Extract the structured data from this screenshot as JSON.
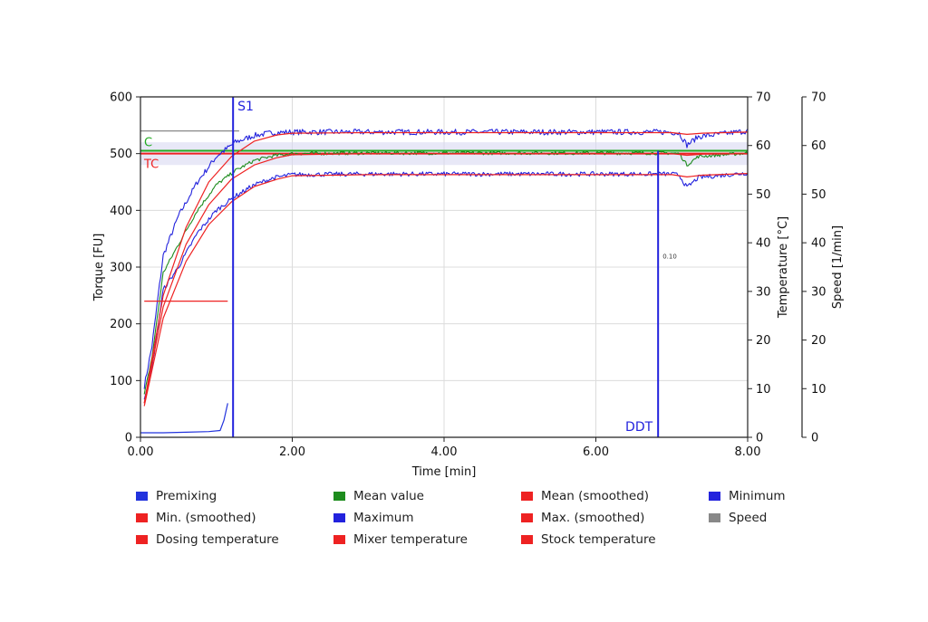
{
  "chart_data": {
    "type": "line",
    "xlabel": "Time [min]",
    "ylabel_left": "Torque [FU]",
    "ylabel_right1": "Temperature [°C]",
    "ylabel_right2": "Speed [1/min]",
    "xlim": [
      0,
      8
    ],
    "ylim_torque": [
      0,
      600
    ],
    "ylim_temp": [
      0,
      70
    ],
    "ylim_speed": [
      0,
      70
    ],
    "x_ticks": [
      "0.00",
      "2.00",
      "4.00",
      "6.00",
      "8.00"
    ],
    "torque_ticks": [
      "0",
      "100",
      "200",
      "300",
      "400",
      "500",
      "600"
    ],
    "temp_ticks": [
      "0",
      "10",
      "20",
      "30",
      "40",
      "50",
      "60",
      "70"
    ],
    "speed_ticks": [
      "0",
      "10",
      "20",
      "30",
      "40",
      "50",
      "60",
      "70"
    ],
    "grid": true,
    "markers": [
      {
        "label": "S1",
        "x": 1.22,
        "color": "#2222dd"
      },
      {
        "label": "DDT",
        "x": 6.82,
        "color": "#2222dd"
      }
    ],
    "annotation": {
      "text": "0.10",
      "x": 6.88,
      "y": 315
    },
    "reference_lines": [
      {
        "label": "C",
        "y": 505,
        "color": "#22aa22"
      },
      {
        "label": "TC",
        "y": 500,
        "color": "#ee2222"
      }
    ],
    "tolerance_band": {
      "y_min": 480,
      "y_max": 520,
      "x_min": 0,
      "x_max": 8
    },
    "colors": {
      "premixing": "#2233dd",
      "min_smoothed": "#ee2222",
      "dosing": "#ee2222",
      "mean_value": "#1e8c1e",
      "maximum": "#2222dd",
      "mixer": "#ee2222",
      "mean_smoothed": "#ee2222",
      "max_smoothed": "#ee2222",
      "stock": "#ee2222",
      "minimum": "#2222dd",
      "speed": "#888888"
    },
    "series": [
      {
        "key": "premixing",
        "name": "Premixing",
        "axis": "torque",
        "x": [
          0,
          0.05,
          0.3,
          0.6,
          0.9,
          1.05,
          1.1,
          1.15
        ],
        "values": [
          8,
          8,
          8,
          9,
          10,
          12,
          30,
          60
        ]
      },
      {
        "key": "maximum",
        "name": "Maximum",
        "axis": "torque",
        "x": [
          0.05,
          0.15,
          0.3,
          0.5,
          0.75,
          1.0,
          1.25,
          1.5,
          1.75,
          2.0,
          3.0,
          4.0,
          5.0,
          6.0,
          7.0,
          7.1,
          7.2,
          7.35,
          8.0
        ],
        "values": [
          90,
          160,
          320,
          390,
          450,
          495,
          520,
          532,
          537,
          538,
          538,
          538,
          538,
          538,
          538,
          536,
          515,
          530,
          540
        ]
      },
      {
        "key": "mean_value",
        "name": "Mean value",
        "axis": "torque",
        "x": [
          0.05,
          0.15,
          0.3,
          0.5,
          0.75,
          1.0,
          1.25,
          1.5,
          1.75,
          2.0,
          3.0,
          4.0,
          5.0,
          6.0,
          7.0,
          7.1,
          7.2,
          7.35,
          8.0
        ],
        "values": [
          75,
          140,
          290,
          340,
          400,
          445,
          470,
          488,
          496,
          500,
          501,
          501,
          501,
          501,
          501,
          500,
          480,
          495,
          501
        ]
      },
      {
        "key": "minimum",
        "name": "Minimum",
        "axis": "torque",
        "x": [
          0.05,
          0.15,
          0.3,
          0.5,
          0.75,
          1.0,
          1.25,
          1.5,
          1.75,
          2.0,
          3.0,
          4.0,
          5.0,
          6.0,
          7.0,
          7.1,
          7.2,
          7.35,
          8.0
        ],
        "values": [
          70,
          120,
          260,
          300,
          360,
          400,
          425,
          445,
          457,
          463,
          464,
          464,
          464,
          464,
          464,
          462,
          440,
          458,
          466
        ]
      },
      {
        "key": "max_smoothed",
        "name": "Max. (smoothed)",
        "axis": "torque",
        "x": [
          0.05,
          0.3,
          0.6,
          0.9,
          1.2,
          1.5,
          1.8,
          2.0,
          3.0,
          4.0,
          5.0,
          6.0,
          7.0,
          7.2,
          7.4,
          8.0
        ],
        "values": [
          60,
          250,
          370,
          450,
          495,
          522,
          533,
          536,
          537,
          537,
          537,
          537,
          537,
          534,
          536,
          538
        ]
      },
      {
        "key": "mean_smoothed",
        "name": "Mean (smoothed)",
        "axis": "torque",
        "x": [
          0.05,
          0.3,
          0.6,
          0.9,
          1.2,
          1.5,
          1.8,
          2.0,
          3.0,
          4.0,
          5.0,
          6.0,
          7.0,
          7.2,
          7.4,
          8.0
        ],
        "values": [
          60,
          230,
          340,
          410,
          455,
          480,
          493,
          498,
          500,
          500,
          500,
          500,
          500,
          497,
          499,
          500
        ]
      },
      {
        "key": "min_smoothed",
        "name": "Min. (smoothed)",
        "axis": "torque",
        "x": [
          0.05,
          0.3,
          0.6,
          0.9,
          1.2,
          1.5,
          1.8,
          2.0,
          3.0,
          4.0,
          5.0,
          6.0,
          7.0,
          7.2,
          7.4,
          8.0
        ],
        "values": [
          55,
          210,
          310,
          375,
          415,
          442,
          455,
          461,
          463,
          463,
          463,
          463,
          463,
          459,
          462,
          465
        ]
      },
      {
        "key": "dosing",
        "name": "Dosing temperature",
        "axis": "torque",
        "x": [
          0.05,
          0.3,
          0.6,
          0.9,
          1.15
        ],
        "values": [
          240,
          240,
          240,
          240,
          240
        ]
      },
      {
        "key": "speed",
        "name": "Speed",
        "axis": "speed",
        "x": [
          0,
          0.5,
          1.0,
          1.2,
          1.3
        ],
        "values": [
          63,
          63,
          63,
          63,
          63
        ]
      },
      {
        "key": "mixer",
        "name": "Mixer temperature",
        "axis": "temp",
        "x": [],
        "values": []
      },
      {
        "key": "stock",
        "name": "Stock temperature",
        "axis": "temp",
        "x": [],
        "values": []
      }
    ],
    "legend": [
      {
        "label": "Premixing",
        "color": "#2233dd"
      },
      {
        "label": "Mean value",
        "color": "#1e8c1e"
      },
      {
        "label": "Mean (smoothed)",
        "color": "#ee2222"
      },
      {
        "label": "Minimum",
        "color": "#2222dd"
      },
      {
        "label": "Min. (smoothed)",
        "color": "#ee2222"
      },
      {
        "label": "Maximum",
        "color": "#2222dd"
      },
      {
        "label": "Max. (smoothed)",
        "color": "#ee2222"
      },
      {
        "label": "Speed",
        "color": "#888888"
      },
      {
        "label": "Dosing temperature",
        "color": "#ee2222"
      },
      {
        "label": "Mixer temperature",
        "color": "#ee2222"
      },
      {
        "label": "Stock temperature",
        "color": "#ee2222"
      }
    ],
    "legend_placement": "bottom"
  }
}
